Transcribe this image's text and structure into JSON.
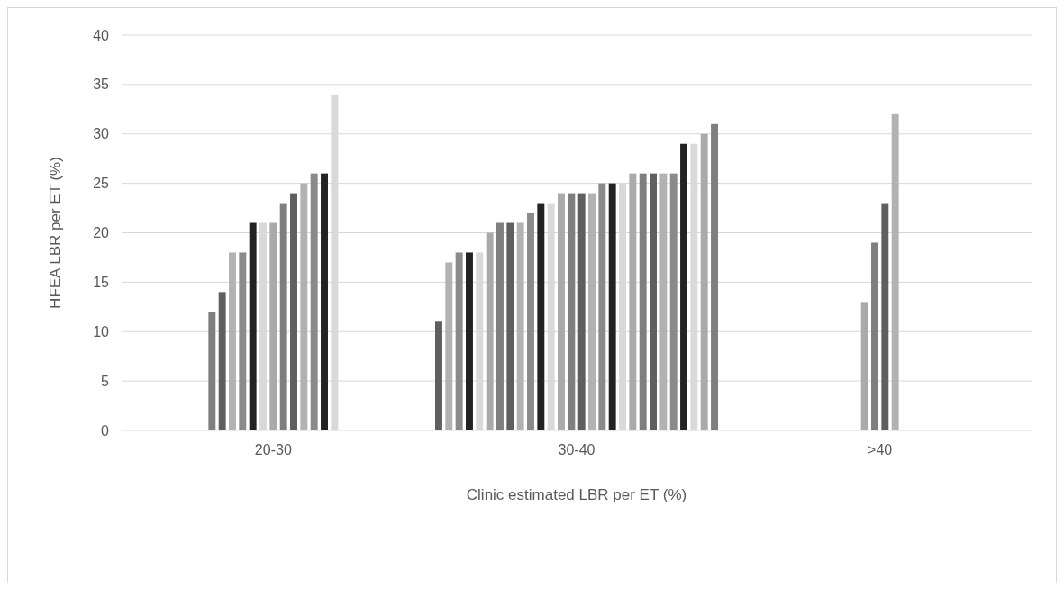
{
  "chart_data": {
    "type": "bar",
    "xlabel": "Clinic estimated LBR per ET (%)",
    "ylabel": "HFEA LBR per ET (%)",
    "categories": [
      "20-30",
      "30-40",
      ">40"
    ],
    "series": [
      {
        "color": "#7f7f7f",
        "values": [
          12,
          null,
          null
        ]
      },
      {
        "color": "#5f5f5f",
        "values": [
          14,
          null,
          null
        ]
      },
      {
        "color": "#b2b2b2",
        "values": [
          18,
          null,
          null
        ]
      },
      {
        "color": "#8a8a8a",
        "values": [
          18,
          null,
          null
        ]
      },
      {
        "color": "#222222",
        "values": [
          21,
          null,
          null
        ]
      },
      {
        "color": "#d9d9d9",
        "values": [
          21,
          null,
          null
        ]
      },
      {
        "color": "#aaaaaa",
        "values": [
          21,
          null,
          null
        ]
      },
      {
        "color": "#7f7f7f",
        "values": [
          23,
          null,
          null
        ]
      },
      {
        "color": "#5f5f5f",
        "values": [
          24,
          null,
          null
        ]
      },
      {
        "color": "#b2b2b2",
        "values": [
          25,
          null,
          null
        ]
      },
      {
        "color": "#8a8a8a",
        "values": [
          26,
          null,
          null
        ]
      },
      {
        "color": "#222222",
        "values": [
          26,
          null,
          null
        ]
      },
      {
        "color": "#d9d9d9",
        "values": [
          34,
          null,
          null
        ]
      },
      {
        "color": "#5f5f5f",
        "values": [
          null,
          11,
          null
        ]
      },
      {
        "color": "#b2b2b2",
        "values": [
          null,
          17,
          null
        ]
      },
      {
        "color": "#8a8a8a",
        "values": [
          null,
          18,
          null
        ]
      },
      {
        "color": "#222222",
        "values": [
          null,
          18,
          null
        ]
      },
      {
        "color": "#d9d9d9",
        "values": [
          null,
          18,
          null
        ]
      },
      {
        "color": "#aaaaaa",
        "values": [
          null,
          20,
          null
        ]
      },
      {
        "color": "#7f7f7f",
        "values": [
          null,
          21,
          null
        ]
      },
      {
        "color": "#5f5f5f",
        "values": [
          null,
          21,
          null
        ]
      },
      {
        "color": "#b2b2b2",
        "values": [
          null,
          21,
          null
        ]
      },
      {
        "color": "#8a8a8a",
        "values": [
          null,
          22,
          null
        ]
      },
      {
        "color": "#222222",
        "values": [
          null,
          23,
          null
        ]
      },
      {
        "color": "#d9d9d9",
        "values": [
          null,
          23,
          null
        ]
      },
      {
        "color": "#aaaaaa",
        "values": [
          null,
          24,
          null
        ]
      },
      {
        "color": "#7f7f7f",
        "values": [
          null,
          24,
          null
        ]
      },
      {
        "color": "#5f5f5f",
        "values": [
          null,
          24,
          null
        ]
      },
      {
        "color": "#b2b2b2",
        "values": [
          null,
          24,
          null
        ]
      },
      {
        "color": "#8a8a8a",
        "values": [
          null,
          25,
          null
        ]
      },
      {
        "color": "#222222",
        "values": [
          null,
          25,
          null
        ]
      },
      {
        "color": "#d9d9d9",
        "values": [
          null,
          25,
          null
        ]
      },
      {
        "color": "#aaaaaa",
        "values": [
          null,
          26,
          null
        ]
      },
      {
        "color": "#7f7f7f",
        "values": [
          null,
          26,
          null
        ]
      },
      {
        "color": "#5f5f5f",
        "values": [
          null,
          26,
          null
        ]
      },
      {
        "color": "#b2b2b2",
        "values": [
          null,
          26,
          null
        ]
      },
      {
        "color": "#8a8a8a",
        "values": [
          null,
          26,
          null
        ]
      },
      {
        "color": "#222222",
        "values": [
          null,
          29,
          null
        ]
      },
      {
        "color": "#d9d9d9",
        "values": [
          null,
          29,
          null
        ]
      },
      {
        "color": "#aaaaaa",
        "values": [
          null,
          30,
          null
        ]
      },
      {
        "color": "#7f7f7f",
        "values": [
          null,
          31,
          null
        ]
      },
      {
        "color": "#aaaaaa",
        "values": [
          null,
          null,
          13
        ]
      },
      {
        "color": "#7f7f7f",
        "values": [
          null,
          null,
          19
        ]
      },
      {
        "color": "#5f5f5f",
        "values": [
          null,
          null,
          23
        ]
      },
      {
        "color": "#b2b2b2",
        "values": [
          null,
          null,
          32
        ]
      }
    ],
    "ylim": [
      0,
      40
    ],
    "yticks": [
      0,
      5,
      10,
      15,
      20,
      25,
      30,
      35,
      40
    ],
    "grid": "y"
  }
}
